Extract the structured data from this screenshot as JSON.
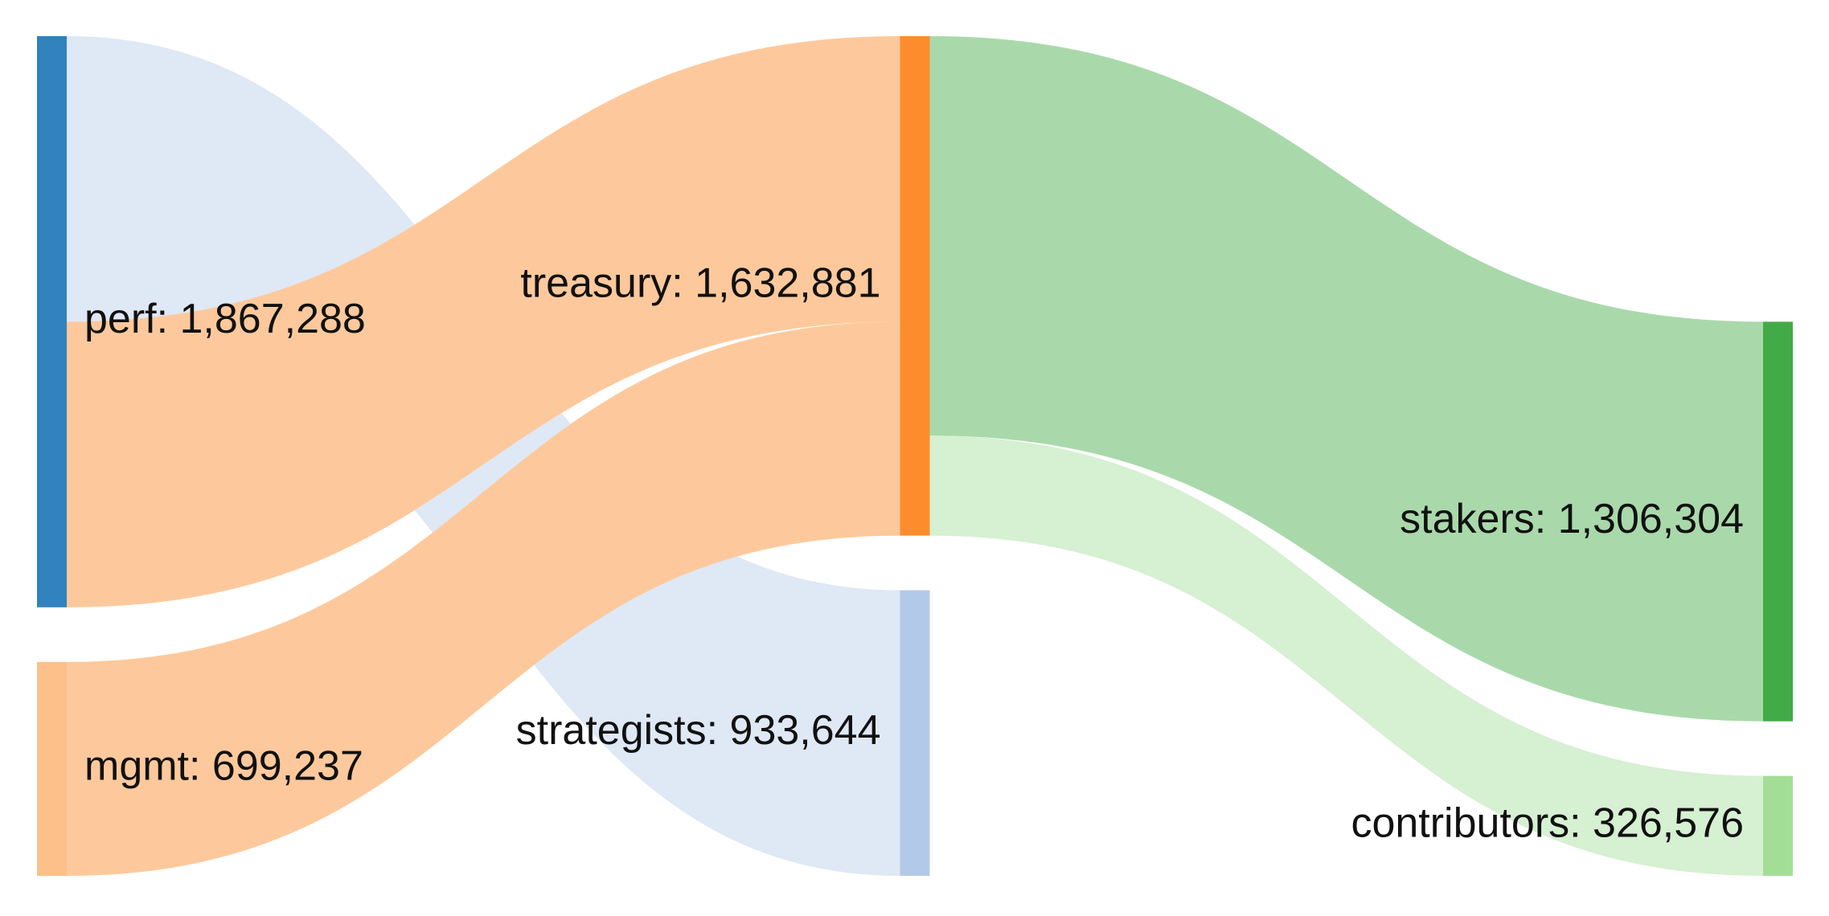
{
  "chart_data": {
    "type": "sankey",
    "nodes": [
      {
        "label": "perf: 1,867,288",
        "value": 1867288,
        "color": "#3182bd"
      },
      {
        "label": "mgmt: 699,237",
        "value": 699237,
        "color": "#fdc08a"
      },
      {
        "label": "treasury: 1,632,881",
        "value": 1632881,
        "color": "#fd8d2c"
      },
      {
        "label": "strategists: 933,644",
        "value": 933644,
        "color": "#b3c9ea"
      },
      {
        "label": "stakers: 1,306,304",
        "value": 1306304,
        "color": "#43aa48"
      },
      {
        "label": "contributors: 326,576",
        "value": 326576,
        "color": "#a3de96"
      }
    ],
    "links": [
      {
        "source": 0,
        "target": 3,
        "value": 933644,
        "color": "#dfe8f5"
      },
      {
        "source": 0,
        "target": 2,
        "value": 933644,
        "color": "#fdc99c"
      },
      {
        "source": 1,
        "target": 2,
        "value": 699237,
        "color": "#fdc99c"
      },
      {
        "source": 2,
        "target": 4,
        "value": 1306304,
        "color": "#a9d9aa"
      },
      {
        "source": 2,
        "target": 5,
        "value": 326576,
        "color": "#d6f0d2"
      }
    ]
  }
}
